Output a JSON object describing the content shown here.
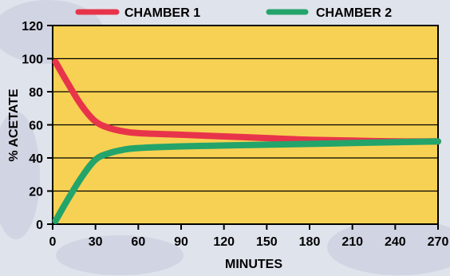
{
  "chart_data": {
    "type": "line",
    "xlabel": "MINUTES",
    "ylabel": "% ACETATE",
    "xlim": [
      0,
      270
    ],
    "ylim": [
      0,
      120
    ],
    "x_ticks": [
      0,
      30,
      60,
      90,
      120,
      150,
      180,
      210,
      240,
      270
    ],
    "y_ticks": [
      0,
      20,
      40,
      60,
      80,
      100,
      120
    ],
    "grid": true,
    "legend_position": "top",
    "plot_background": "#f7d153",
    "series": [
      {
        "name": "CHAMBER 1",
        "color": "#e8344a",
        "x": [
          2,
          10,
          20,
          30,
          40,
          50,
          60,
          90,
          120,
          150,
          180,
          210,
          240,
          270
        ],
        "y": [
          98,
          86,
          72,
          62,
          58,
          56,
          55,
          54,
          53,
          52,
          51,
          50.5,
          50,
          50
        ]
      },
      {
        "name": "CHAMBER 2",
        "color": "#23a46b",
        "x": [
          2,
          10,
          20,
          30,
          40,
          50,
          60,
          90,
          120,
          150,
          180,
          210,
          240,
          270
        ],
        "y": [
          2,
          14,
          28,
          39,
          43,
          45,
          46,
          47,
          47.5,
          48,
          48.5,
          49,
          49.5,
          50
        ]
      }
    ]
  }
}
